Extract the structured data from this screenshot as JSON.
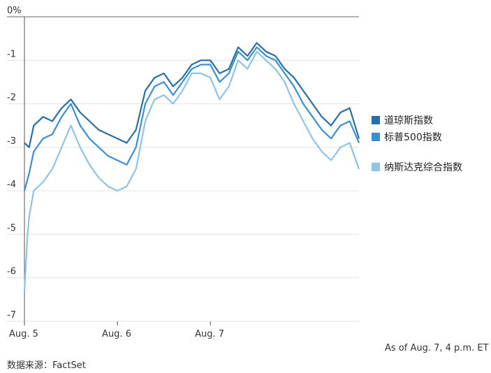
{
  "chart_data": {
    "type": "line",
    "x_categories": [
      "Aug. 5",
      "Aug. 6",
      "Aug. 7"
    ],
    "y_tick_labels": [
      "0%",
      "-1",
      "-2",
      "-3",
      "-4",
      "-5",
      "-6",
      "-7"
    ],
    "ylim": [
      -7,
      0
    ],
    "xlim": [
      0,
      3.6
    ],
    "grid": "horizontal",
    "legend_position": "right",
    "series": [
      {
        "name": "道琼斯指数",
        "color": "#2a6ea6",
        "x": [
          0.0,
          0.05,
          0.1,
          0.2,
          0.3,
          0.4,
          0.5,
          0.6,
          0.7,
          0.8,
          0.9,
          1.0,
          1.1,
          1.2,
          1.3,
          1.4,
          1.5,
          1.6,
          1.7,
          1.8,
          1.9,
          2.0,
          2.1,
          2.2,
          2.3,
          2.4,
          2.5,
          2.6,
          2.7,
          2.8,
          2.9,
          3.0,
          3.1,
          3.2,
          3.3,
          3.4,
          3.5,
          3.6
        ],
        "values": [
          -2.9,
          -3.0,
          -2.5,
          -2.3,
          -2.4,
          -2.1,
          -1.9,
          -2.2,
          -2.4,
          -2.6,
          -2.7,
          -2.8,
          -2.9,
          -2.6,
          -1.7,
          -1.4,
          -1.3,
          -1.6,
          -1.4,
          -1.1,
          -1.0,
          -1.0,
          -1.3,
          -1.2,
          -0.7,
          -0.9,
          -0.6,
          -0.8,
          -0.9,
          -1.2,
          -1.4,
          -1.7,
          -2.0,
          -2.3,
          -2.5,
          -2.2,
          -2.1,
          -2.8
        ]
      },
      {
        "name": "标普500指数",
        "color": "#3b8fd1",
        "x": [
          0.0,
          0.05,
          0.1,
          0.2,
          0.3,
          0.4,
          0.5,
          0.6,
          0.7,
          0.8,
          0.9,
          1.0,
          1.1,
          1.2,
          1.3,
          1.4,
          1.5,
          1.6,
          1.7,
          1.8,
          1.9,
          2.0,
          2.1,
          2.2,
          2.3,
          2.4,
          2.5,
          2.6,
          2.7,
          2.8,
          2.9,
          3.0,
          3.1,
          3.2,
          3.3,
          3.4,
          3.5,
          3.6
        ],
        "values": [
          -4.0,
          -3.6,
          -3.1,
          -2.8,
          -2.7,
          -2.3,
          -2.0,
          -2.5,
          -2.8,
          -3.0,
          -3.2,
          -3.3,
          -3.4,
          -3.0,
          -2.0,
          -1.6,
          -1.5,
          -1.8,
          -1.5,
          -1.2,
          -1.1,
          -1.1,
          -1.5,
          -1.3,
          -0.8,
          -1.0,
          -0.7,
          -0.9,
          -1.0,
          -1.3,
          -1.6,
          -2.0,
          -2.3,
          -2.6,
          -2.8,
          -2.5,
          -2.4,
          -2.9
        ]
      },
      {
        "name": "纳斯达克综合指数",
        "color": "#8fc3e6",
        "x": [
          0.0,
          0.03,
          0.05,
          0.1,
          0.2,
          0.3,
          0.4,
          0.5,
          0.6,
          0.7,
          0.8,
          0.9,
          1.0,
          1.1,
          1.2,
          1.3,
          1.4,
          1.5,
          1.6,
          1.7,
          1.8,
          1.9,
          2.0,
          2.1,
          2.2,
          2.3,
          2.4,
          2.5,
          2.6,
          2.7,
          2.8,
          2.9,
          3.0,
          3.1,
          3.2,
          3.3,
          3.4,
          3.5,
          3.6
        ],
        "values": [
          -6.3,
          -5.1,
          -4.6,
          -4.0,
          -3.8,
          -3.5,
          -3.0,
          -2.5,
          -3.0,
          -3.4,
          -3.7,
          -3.9,
          -4.0,
          -3.9,
          -3.5,
          -2.4,
          -1.9,
          -1.8,
          -2.0,
          -1.7,
          -1.3,
          -1.3,
          -1.4,
          -1.9,
          -1.6,
          -1.0,
          -1.2,
          -0.8,
          -1.0,
          -1.2,
          -1.5,
          -2.0,
          -2.4,
          -2.8,
          -3.1,
          -3.3,
          -3.0,
          -2.9,
          -3.5
        ]
      }
    ]
  },
  "footer": {
    "as_of": "As of Aug. 7, 4 p.m. ET",
    "source": "数据来源：FactSet"
  }
}
